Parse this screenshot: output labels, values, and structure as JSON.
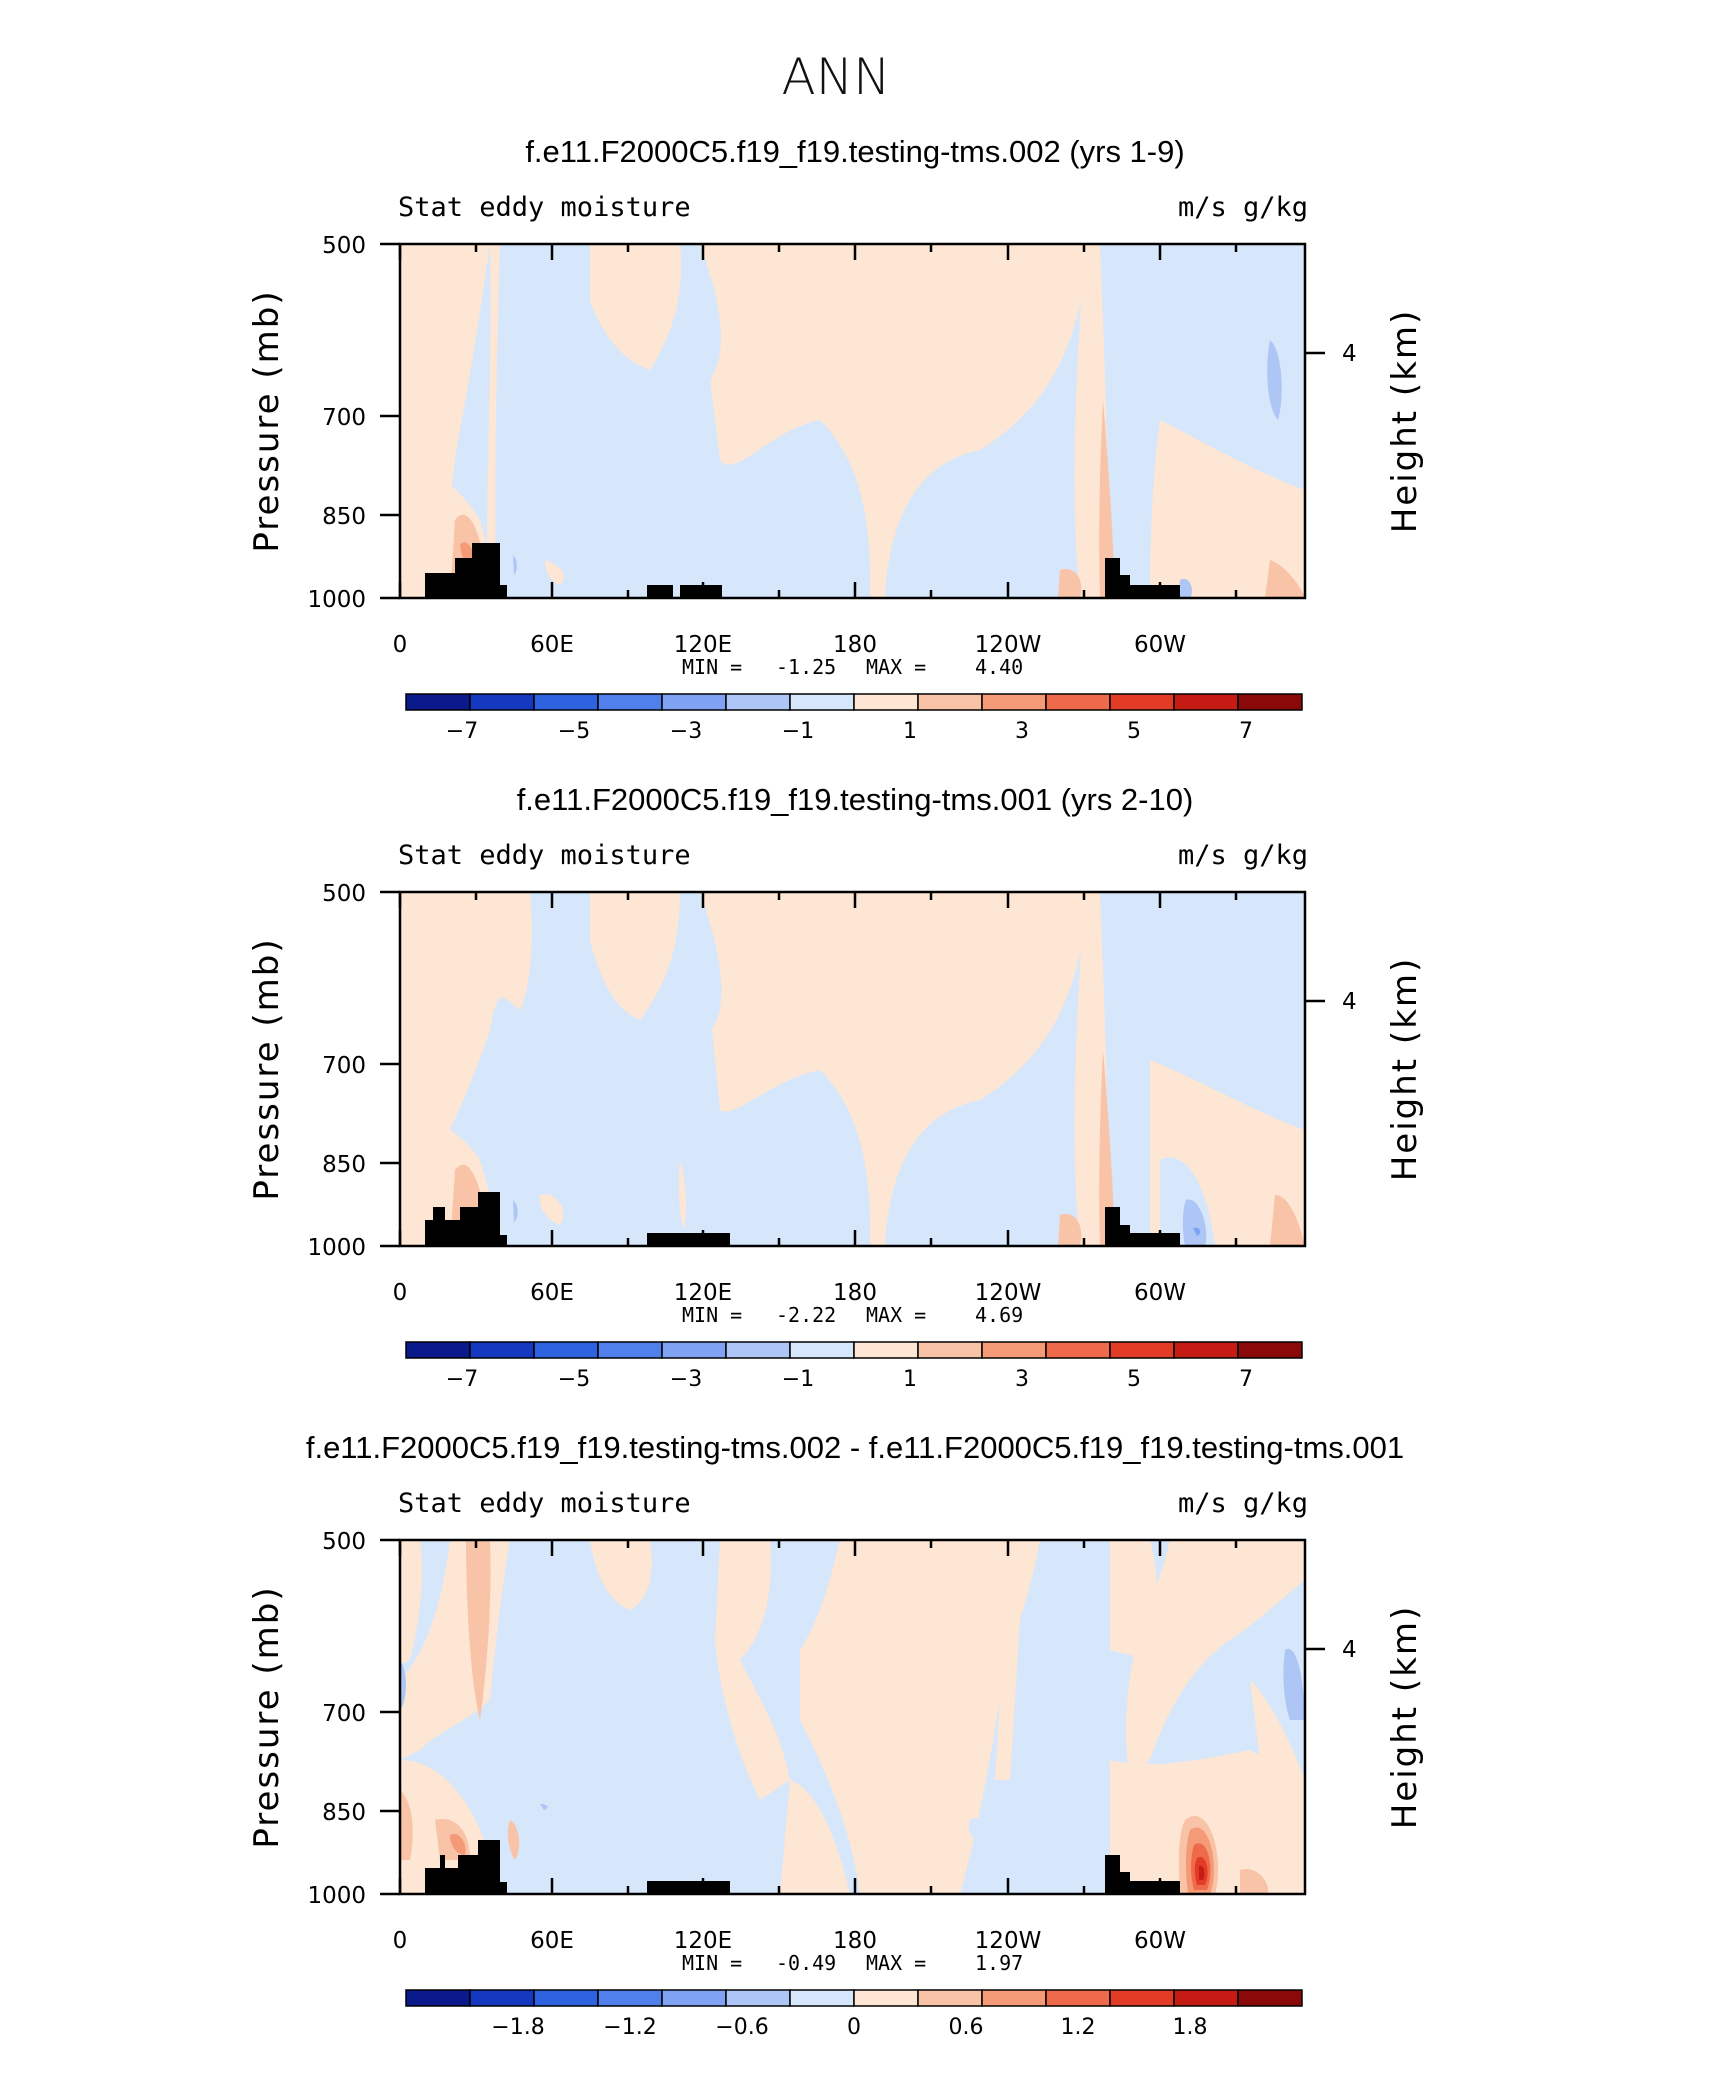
{
  "figure_title": "ANN",
  "chart_data": [
    {
      "type": "heatmap",
      "title": "f.e11.F2000C5.f19_f19.testing-tms.002 (yrs 1-9)",
      "left_subtitle": "Stat eddy moisture",
      "right_subtitle": "m/s g/kg",
      "ylabel": "Pressure (mb)",
      "right_ylabel": "Height (km)",
      "yticks": [
        "500",
        "700",
        "850",
        "1000"
      ],
      "right_yticks": [
        "4"
      ],
      "xticks": [
        "0",
        "60E",
        "120E",
        "180",
        "120W",
        "60W"
      ],
      "min_label": "MIN =",
      "min_value": "-1.25",
      "max_label": "MAX =",
      "max_value": "4.40",
      "colorbar_labels": [
        "-7",
        "-5",
        "-3",
        "-1",
        "1",
        "3",
        "5",
        "7"
      ],
      "colorbar_range": [
        -8,
        8
      ]
    },
    {
      "type": "heatmap",
      "title": "f.e11.F2000C5.f19_f19.testing-tms.001 (yrs 2-10)",
      "left_subtitle": "Stat eddy moisture",
      "right_subtitle": "m/s g/kg",
      "ylabel": "Pressure (mb)",
      "right_ylabel": "Height (km)",
      "yticks": [
        "500",
        "700",
        "850",
        "1000"
      ],
      "right_yticks": [
        "4"
      ],
      "xticks": [
        "0",
        "60E",
        "120E",
        "180",
        "120W",
        "60W"
      ],
      "min_label": "MIN =",
      "min_value": "-2.22",
      "max_label": "MAX =",
      "max_value": "4.69",
      "colorbar_labels": [
        "-7",
        "-5",
        "-3",
        "-1",
        "1",
        "3",
        "5",
        "7"
      ],
      "colorbar_range": [
        -8,
        8
      ]
    },
    {
      "type": "heatmap",
      "title": "f.e11.F2000C5.f19_f19.testing-tms.002 - f.e11.F2000C5.f19_f19.testing-tms.001",
      "left_subtitle": "Stat eddy moisture",
      "right_subtitle": "m/s g/kg",
      "ylabel": "Pressure (mb)",
      "right_ylabel": "Height (km)",
      "yticks": [
        "500",
        "700",
        "850",
        "1000"
      ],
      "right_yticks": [
        "4"
      ],
      "xticks": [
        "0",
        "60E",
        "120E",
        "180",
        "120W",
        "60W"
      ],
      "min_label": "MIN =",
      "min_value": "-0.49",
      "max_label": "MAX =",
      "max_value": "1.97",
      "colorbar_labels": [
        "-1.8",
        "-1.2",
        "-0.6",
        "0",
        "0.6",
        "1.2",
        "1.8"
      ],
      "colorbar_range": [
        -2.4,
        2.4
      ]
    }
  ],
  "colors": {
    "colorbar": [
      "#0a1a8c",
      "#1438c0",
      "#2f62e0",
      "#5080ec",
      "#7fa3f2",
      "#aec6f6",
      "#d6e6fb",
      "#fde6d3",
      "#f9c3a7",
      "#f49a76",
      "#ee6a4a",
      "#e33c26",
      "#c41c14",
      "#8a0a0a"
    ],
    "neg_fill": "#d6e6fb",
    "pos_fill": "#fde6d3"
  }
}
